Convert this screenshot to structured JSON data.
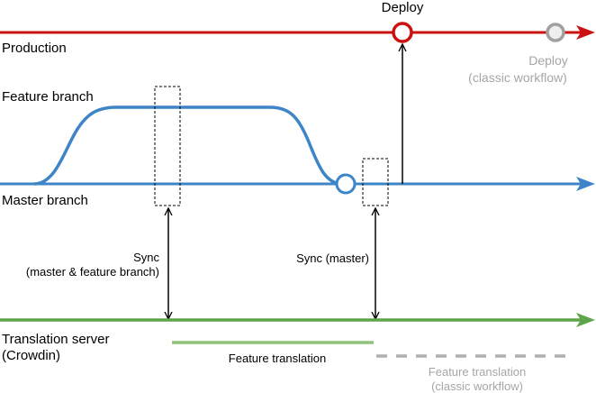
{
  "labels": {
    "deploy": "Deploy",
    "production": "Production",
    "deploy_classic_1": "Deploy",
    "deploy_classic_2": "(classic workflow)",
    "feature_branch": "Feature branch",
    "master_branch": "Master branch",
    "sync_both_1": "Sync",
    "sync_both_2": "(master & feature branch)",
    "sync_master": "Sync (master)",
    "translation_server_1": "Translation server",
    "translation_server_2": "(Crowdin)",
    "feature_translation": "Feature translation",
    "feature_translation_classic_1": "Feature translation",
    "feature_translation_classic_2": "(classic workflow)"
  },
  "colors": {
    "production": "#cc1111",
    "branch": "#3d85c6",
    "translation": "#5ea44a",
    "translation_light": "#8fc27a",
    "classic": "#b0b0b0",
    "classic_text": "#a6a6a6"
  }
}
